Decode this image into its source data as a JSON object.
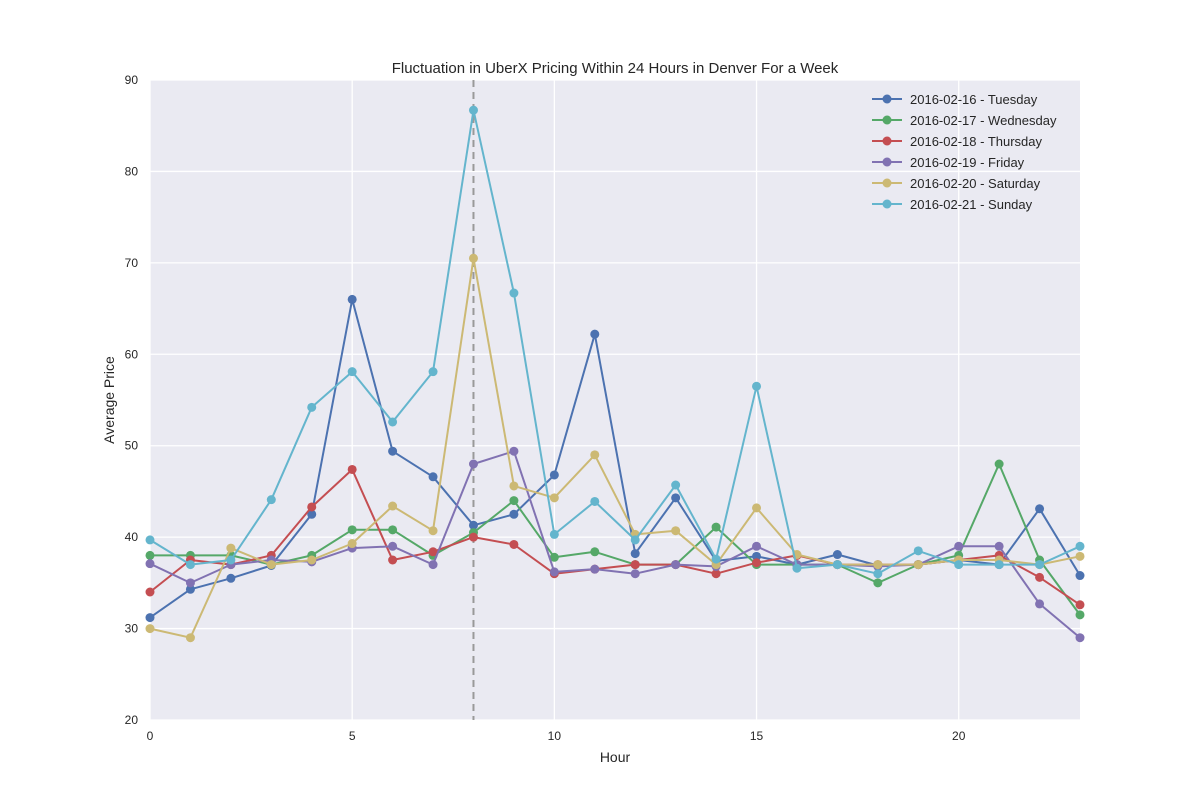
{
  "chart_data": {
    "type": "line",
    "title": "Fluctuation in UberX Pricing Within 24 Hours in Denver For a Week",
    "xlabel": "Hour",
    "ylabel": "Average Price",
    "xlim": [
      0,
      23
    ],
    "ylim": [
      20,
      90
    ],
    "x_ticks": [
      0,
      5,
      10,
      15,
      20
    ],
    "y_ticks": [
      20,
      30,
      40,
      50,
      60,
      70,
      80,
      90
    ],
    "grid": true,
    "legend_position": "top-right",
    "reference_line": {
      "x": 8,
      "style": "dashed",
      "color": "#999999"
    },
    "x": [
      0,
      1,
      2,
      3,
      4,
      5,
      6,
      7,
      8,
      9,
      10,
      11,
      12,
      13,
      14,
      15,
      16,
      17,
      18,
      19,
      20,
      21,
      22,
      23
    ],
    "series": [
      {
        "name": "2016-02-16 - Tuesday",
        "color": "#4C72B0",
        "values": [
          31.2,
          34.3,
          35.5,
          36.9,
          42.5,
          66.0,
          49.4,
          46.6,
          41.3,
          42.5,
          46.8,
          62.2,
          38.2,
          44.3,
          37.4,
          37.9,
          37.0,
          38.1,
          36.9,
          37.0,
          37.5,
          37.0,
          43.1,
          35.8
        ]
      },
      {
        "name": "2016-02-17 - Wednesday",
        "color": "#55A868",
        "values": [
          38.0,
          38.0,
          38.0,
          37.0,
          38.0,
          40.8,
          40.8,
          38.0,
          40.5,
          44.0,
          37.8,
          38.4,
          37.0,
          37.0,
          41.1,
          37.0,
          37.0,
          37.0,
          35.0,
          37.0,
          38.0,
          48.0,
          37.5,
          31.5
        ]
      },
      {
        "name": "2016-02-18 - Thursday",
        "color": "#C44E52",
        "values": [
          34.0,
          37.5,
          37.0,
          38.0,
          43.3,
          47.4,
          37.5,
          38.4,
          40.0,
          39.2,
          36.0,
          36.5,
          37.0,
          37.0,
          36.0,
          37.2,
          38.0,
          37.0,
          37.0,
          37.0,
          37.5,
          38.0,
          35.6,
          32.6
        ]
      },
      {
        "name": "2016-02-19 - Friday",
        "color": "#8172B2",
        "values": [
          37.1,
          35.0,
          37.0,
          37.5,
          37.3,
          38.8,
          39.0,
          37.0,
          48.0,
          49.4,
          36.2,
          36.5,
          36.0,
          37.0,
          36.8,
          39.0,
          37.0,
          37.0,
          36.8,
          37.0,
          39.0,
          39.0,
          32.7,
          29.0
        ]
      },
      {
        "name": "2016-02-20 - Saturday",
        "color": "#CCB974",
        "values": [
          30.0,
          29.0,
          38.8,
          37.0,
          37.5,
          39.3,
          43.4,
          40.7,
          70.5,
          45.6,
          44.3,
          49.0,
          40.3,
          40.7,
          37.0,
          43.2,
          38.1,
          37.0,
          37.0,
          37.0,
          37.5,
          37.5,
          37.0,
          37.9
        ]
      },
      {
        "name": "2016-02-21 - Sunday",
        "color": "#64B5CD",
        "values": [
          39.7,
          37.0,
          37.5,
          44.1,
          54.2,
          58.1,
          52.6,
          58.1,
          86.7,
          66.7,
          40.3,
          43.9,
          39.7,
          45.7,
          37.6,
          56.5,
          36.6,
          37.0,
          36.0,
          38.5,
          37.0,
          37.0,
          37.0,
          39.0
        ]
      }
    ]
  }
}
